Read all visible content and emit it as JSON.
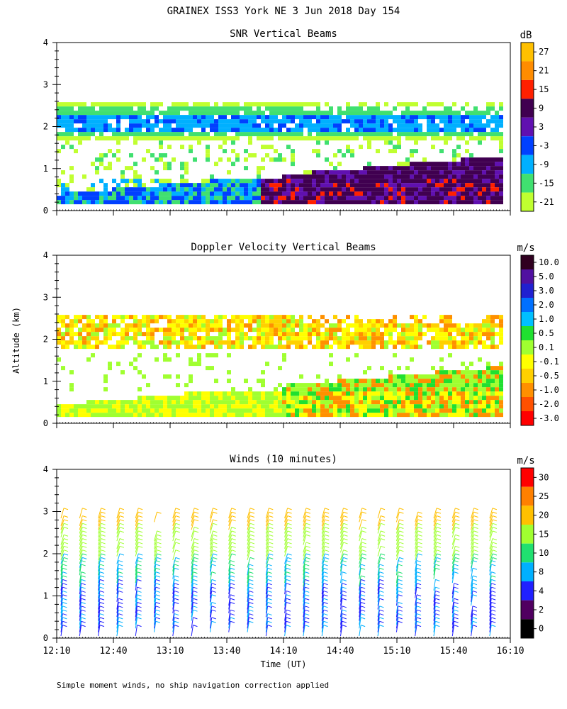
{
  "title": "GRAINEX ISS3 York NE   3 Jun 2018 Day 154",
  "footer": "Simple moment winds, no ship navigation correction applied",
  "ylabel": "Altitude (km)",
  "xlabel": "Time (UT)",
  "chart_data": [
    {
      "type": "heatmap",
      "title": "SNR Vertical Beams",
      "unit": "dB",
      "x_ticks": [
        "12:10",
        "12:40",
        "13:10",
        "13:40",
        "14:10",
        "14:40",
        "15:10",
        "15:40",
        "16:10"
      ],
      "y_ticks": [
        "0",
        "1",
        "2",
        "3",
        "4"
      ],
      "ylim": [
        0,
        4
      ],
      "xlim": [
        "12:10",
        "16:10"
      ],
      "colorbar": {
        "labels": [
          "27",
          "21",
          "15",
          "9",
          "3",
          "-3",
          "-9",
          "-15",
          "-21"
        ],
        "colors": [
          "#ffc000",
          "#ff8c00",
          "#ff2000",
          "#400050",
          "#6010b0",
          "#0040ff",
          "#00b0ff",
          "#40e070",
          "#c0ff30"
        ]
      }
    },
    {
      "type": "heatmap",
      "title": "Doppler Velocity Vertical Beams",
      "unit": "m/s",
      "x_ticks": [
        "12:10",
        "12:40",
        "13:10",
        "13:40",
        "14:10",
        "14:40",
        "15:10",
        "15:40",
        "16:10"
      ],
      "y_ticks": [
        "0",
        "1",
        "2",
        "3",
        "4"
      ],
      "ylim": [
        0,
        4
      ],
      "colorbar": {
        "labels": [
          "10.0",
          "5.0",
          "3.0",
          "2.0",
          "1.0",
          "0.5",
          "0.1",
          "-0.1",
          "-0.5",
          "-1.0",
          "-2.0",
          "-3.0"
        ],
        "colors": [
          "#300020",
          "#5010a0",
          "#2020d0",
          "#0070ff",
          "#00c0ff",
          "#20e030",
          "#a0ff30",
          "#ffff00",
          "#ffd000",
          "#ff9000",
          "#ff5000",
          "#ff0000"
        ]
      }
    },
    {
      "type": "scatter",
      "title": "Winds (10 minutes)",
      "unit": "m/s",
      "x_ticks": [
        "12:10",
        "12:40",
        "13:10",
        "13:40",
        "14:10",
        "14:40",
        "15:10",
        "15:40",
        "16:10"
      ],
      "y_ticks": [
        "0",
        "1",
        "2",
        "3",
        "4"
      ],
      "ylim": [
        0,
        4
      ],
      "colorbar": {
        "labels": [
          "30",
          "25",
          "20",
          "15",
          "10",
          "8",
          "4",
          "2",
          "0"
        ],
        "colors": [
          "#ff0000",
          "#ff8000",
          "#ffc000",
          "#a0ff30",
          "#20e070",
          "#00b0ff",
          "#2020ff",
          "#500060",
          "#000000"
        ]
      }
    }
  ]
}
